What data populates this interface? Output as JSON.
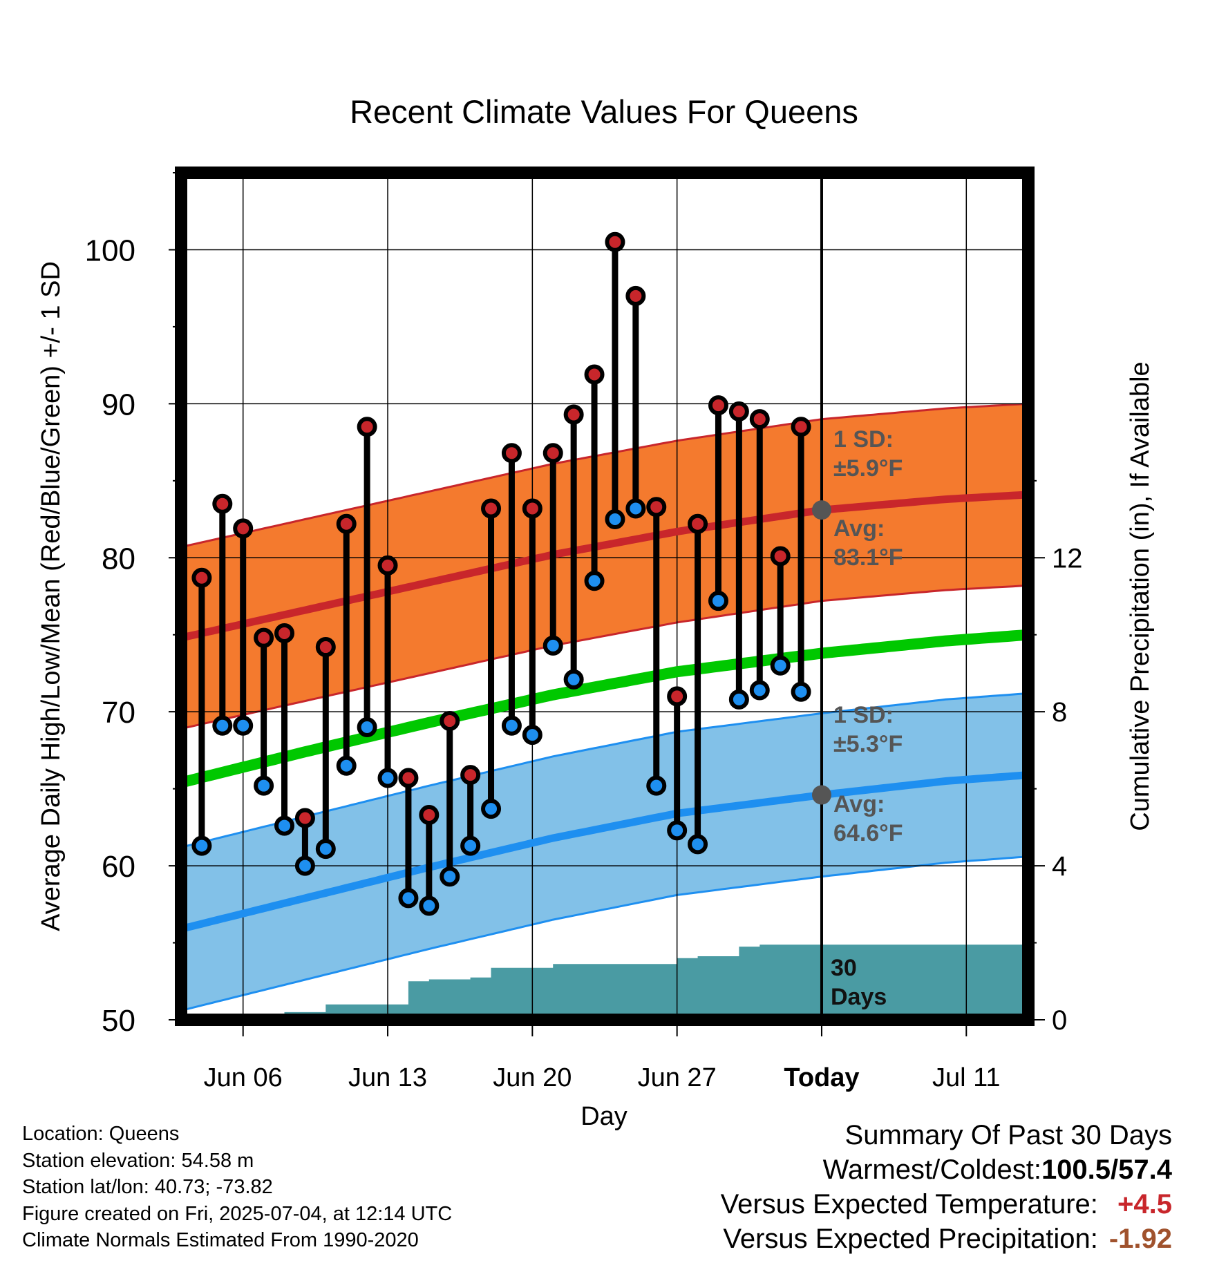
{
  "chart_data": {
    "type": "line",
    "title": "Recent Climate Values For Queens",
    "xlabel": "Day",
    "ylabel": "Average Daily High/Low/Mean (Red/Blue/Green) +/- 1 SD",
    "y2label": "Cumulative Precipitation (in), If Available",
    "x_range": [
      "2025-06-03",
      "2025-07-14"
    ],
    "ylim": [
      50,
      105
    ],
    "y2lim": [
      0,
      22
    ],
    "yticks": [
      "50",
      "60",
      "70",
      "80",
      "90",
      "100"
    ],
    "y2ticks": [
      "0",
      "4",
      "8",
      "12"
    ],
    "xticks": [
      {
        "date": "2025-06-06",
        "label": "Jun 06"
      },
      {
        "date": "2025-06-13",
        "label": "Jun 13"
      },
      {
        "date": "2025-06-20",
        "label": "Jun 20"
      },
      {
        "date": "2025-06-27",
        "label": "Jun 27"
      },
      {
        "date": "2025-07-04",
        "label": "Today"
      },
      {
        "date": "2025-07-11",
        "label": "Jul 11"
      }
    ],
    "today": "2025-07-04",
    "grid": true,
    "series": [
      {
        "name": "High",
        "color": "#c8262b",
        "dates": [
          "2025-06-04",
          "2025-06-05",
          "2025-06-06",
          "2025-06-07",
          "2025-06-08",
          "2025-06-09",
          "2025-06-10",
          "2025-06-11",
          "2025-06-12",
          "2025-06-13",
          "2025-06-14",
          "2025-06-15",
          "2025-06-16",
          "2025-06-17",
          "2025-06-18",
          "2025-06-19",
          "2025-06-20",
          "2025-06-21",
          "2025-06-22",
          "2025-06-23",
          "2025-06-24",
          "2025-06-25",
          "2025-06-26",
          "2025-06-27",
          "2025-06-28",
          "2025-06-29",
          "2025-06-30",
          "2025-07-01",
          "2025-07-02",
          "2025-07-03"
        ],
        "values": [
          78.7,
          83.5,
          81.9,
          74.8,
          75.1,
          63.1,
          74.2,
          82.2,
          88.5,
          79.5,
          65.7,
          63.3,
          69.4,
          65.9,
          83.2,
          86.8,
          83.2,
          86.8,
          89.3,
          91.9,
          100.5,
          97.0,
          83.3,
          71.0,
          82.2,
          89.9,
          89.5,
          89.0,
          80.1,
          88.5
        ]
      },
      {
        "name": "Low",
        "color": "#1e8ff0",
        "dates": [
          "2025-06-04",
          "2025-06-05",
          "2025-06-06",
          "2025-06-07",
          "2025-06-08",
          "2025-06-09",
          "2025-06-10",
          "2025-06-11",
          "2025-06-12",
          "2025-06-13",
          "2025-06-14",
          "2025-06-15",
          "2025-06-16",
          "2025-06-17",
          "2025-06-18",
          "2025-06-19",
          "2025-06-20",
          "2025-06-21",
          "2025-06-22",
          "2025-06-23",
          "2025-06-24",
          "2025-06-25",
          "2025-06-26",
          "2025-06-27",
          "2025-06-28",
          "2025-06-29",
          "2025-06-30",
          "2025-07-01",
          "2025-07-02",
          "2025-07-03"
        ],
        "values": [
          61.3,
          69.1,
          69.1,
          65.2,
          62.6,
          60.0,
          61.1,
          66.5,
          69.0,
          65.7,
          57.9,
          57.4,
          59.3,
          61.3,
          63.7,
          69.1,
          68.5,
          74.3,
          72.1,
          78.5,
          82.5,
          83.2,
          65.2,
          62.3,
          61.4,
          77.2,
          70.8,
          71.4,
          73.0,
          71.3
        ]
      },
      {
        "name": "Normal High",
        "color": "#c8262b",
        "dates": [
          "2025-06-03",
          "2025-06-09",
          "2025-06-15",
          "2025-06-21",
          "2025-06-27",
          "2025-07-04",
          "2025-07-10",
          "2025-07-14"
        ],
        "values": [
          74.8,
          76.6,
          78.4,
          80.2,
          81.7,
          83.1,
          83.8,
          84.1
        ],
        "sd": 5.9
      },
      {
        "name": "Normal Low",
        "color": "#1e8ff0",
        "dates": [
          "2025-06-03",
          "2025-06-09",
          "2025-06-15",
          "2025-06-21",
          "2025-06-27",
          "2025-07-04",
          "2025-07-10",
          "2025-07-14"
        ],
        "values": [
          55.9,
          57.9,
          59.9,
          61.8,
          63.4,
          64.6,
          65.5,
          65.9
        ],
        "sd": 5.3
      },
      {
        "name": "Normal Mean",
        "color": "#00c800",
        "dates": [
          "2025-06-03",
          "2025-06-09",
          "2025-06-15",
          "2025-06-21",
          "2025-06-27",
          "2025-07-04",
          "2025-07-10",
          "2025-07-14"
        ],
        "values": [
          65.4,
          67.4,
          69.3,
          71.1,
          72.6,
          73.8,
          74.6,
          75.0
        ]
      },
      {
        "name": "Cumulative Precipitation",
        "color": "#4a9ba3",
        "axis": "y2",
        "dates": [
          "2025-06-03",
          "2025-06-07",
          "2025-06-08",
          "2025-06-09",
          "2025-06-10",
          "2025-06-11",
          "2025-06-12",
          "2025-06-13",
          "2025-06-14",
          "2025-06-15",
          "2025-06-16",
          "2025-06-17",
          "2025-06-18",
          "2025-06-19",
          "2025-06-20",
          "2025-06-21",
          "2025-06-22",
          "2025-06-23",
          "2025-06-24",
          "2025-06-25",
          "2025-06-26",
          "2025-06-27",
          "2025-06-28",
          "2025-06-29",
          "2025-06-30",
          "2025-07-01",
          "2025-07-02",
          "2025-07-03",
          "2025-07-14"
        ],
        "values": [
          0,
          0,
          0.2,
          0.2,
          0.4,
          0.4,
          0.4,
          0.4,
          1.0,
          1.05,
          1.05,
          1.1,
          1.35,
          1.35,
          1.35,
          1.45,
          1.45,
          1.45,
          1.45,
          1.45,
          1.45,
          1.6,
          1.65,
          1.65,
          1.9,
          1.95,
          1.95,
          1.95,
          1.95
        ]
      }
    ],
    "annotations": {
      "high_sd_label": [
        "1 SD:",
        "±5.9°F"
      ],
      "high_avg_label": [
        "Avg:",
        "83.1°F"
      ],
      "low_sd_label": [
        "1 SD:",
        "±5.3°F"
      ],
      "low_avg_label": [
        "Avg:",
        "64.6°F"
      ],
      "days_label": [
        "30",
        "Days"
      ]
    }
  },
  "info": {
    "location": "Location: Queens",
    "elevation": "Station elevation: 54.58 m",
    "latlon": "Station lat/lon: 40.73; -73.82",
    "created": "Figure created on Fri, 2025-07-04, at 12:14 UTC",
    "normals": "Climate Normals Estimated From 1990-2020"
  },
  "summary": {
    "title": "Summary Of Past 30 Days",
    "warmest_coldest_label": "Warmest/Coldest:",
    "warmest_coldest_value": "100.5/57.4",
    "temp_label": "Versus Expected Temperature:",
    "temp_value": "+4.5",
    "precip_label": "Versus Expected Precipitation:",
    "precip_value": "-1.92",
    "temp_color": "#c8262b",
    "precip_color": "#a0522d"
  },
  "colors": {
    "high_band": "#f47a2e",
    "low_band": "#82c1e8",
    "precip_fill": "#4a9ba3",
    "mean_line": "#00c800",
    "high_line": "#c8262b",
    "low_line": "#1e8ff0",
    "annotation_text": "#555555"
  }
}
